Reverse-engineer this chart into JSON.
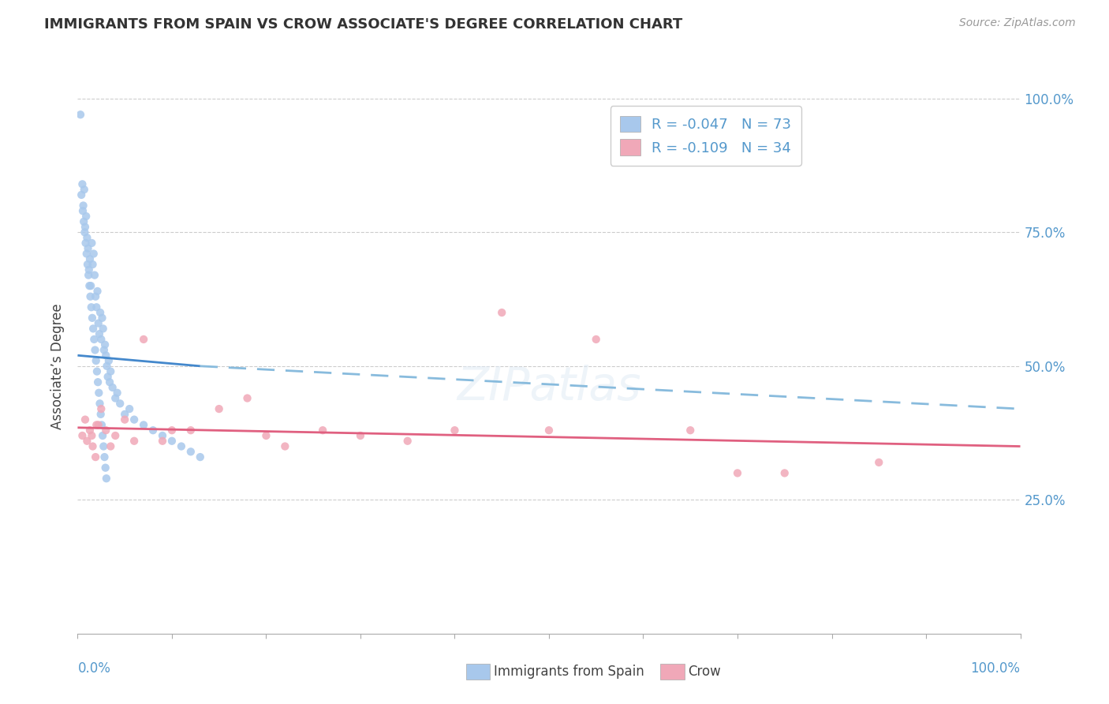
{
  "title": "IMMIGRANTS FROM SPAIN VS CROW ASSOCIATE'S DEGREE CORRELATION CHART",
  "source_text": "Source: ZipAtlas.com",
  "ylabel": "Associate’s Degree",
  "legend_label1": "Immigrants from Spain",
  "legend_label2": "Crow",
  "R1": -0.047,
  "N1": 73,
  "R2": -0.109,
  "N2": 34,
  "blue_color": "#A8C8EC",
  "blue_line_color": "#4488CC",
  "pink_color": "#F0A8B8",
  "pink_line_color": "#E06080",
  "dashed_line_color": "#88BBDD",
  "blue_scatter_x": [
    0.3,
    0.5,
    0.6,
    0.7,
    0.8,
    0.9,
    1.0,
    1.1,
    1.2,
    1.3,
    1.4,
    1.5,
    1.6,
    1.7,
    1.8,
    1.9,
    2.0,
    2.1,
    2.2,
    2.3,
    2.4,
    2.5,
    2.6,
    2.7,
    2.8,
    2.9,
    3.0,
    3.1,
    3.2,
    3.3,
    3.4,
    3.5,
    3.7,
    4.0,
    4.2,
    4.5,
    5.0,
    5.5,
    6.0,
    7.0,
    8.0,
    9.0,
    10.0,
    11.0,
    12.0,
    13.0,
    0.4,
    0.55,
    0.65,
    0.75,
    0.85,
    0.95,
    1.05,
    1.15,
    1.25,
    1.35,
    1.45,
    1.55,
    1.65,
    1.75,
    1.85,
    1.95,
    2.05,
    2.15,
    2.25,
    2.35,
    2.45,
    2.55,
    2.65,
    2.75,
    2.85,
    2.95,
    3.05
  ],
  "blue_scatter_y": [
    97.0,
    84.0,
    80.0,
    83.0,
    76.0,
    78.0,
    74.0,
    72.0,
    68.0,
    70.0,
    65.0,
    73.0,
    69.0,
    71.0,
    67.0,
    63.0,
    61.0,
    64.0,
    58.0,
    56.0,
    60.0,
    55.0,
    59.0,
    57.0,
    53.0,
    54.0,
    52.0,
    50.0,
    48.0,
    51.0,
    47.0,
    49.0,
    46.0,
    44.0,
    45.0,
    43.0,
    41.0,
    42.0,
    40.0,
    39.0,
    38.0,
    37.0,
    36.0,
    35.0,
    34.0,
    33.0,
    82.0,
    79.0,
    77.0,
    75.0,
    73.0,
    71.0,
    69.0,
    67.0,
    65.0,
    63.0,
    61.0,
    59.0,
    57.0,
    55.0,
    53.0,
    51.0,
    49.0,
    47.0,
    45.0,
    43.0,
    41.0,
    39.0,
    37.0,
    35.0,
    33.0,
    31.0,
    29.0
  ],
  "pink_scatter_x": [
    0.5,
    0.8,
    1.0,
    1.3,
    1.6,
    1.9,
    2.2,
    2.5,
    3.0,
    4.0,
    5.0,
    7.0,
    9.0,
    12.0,
    15.0,
    18.0,
    22.0,
    26.0,
    30.0,
    35.0,
    40.0,
    45.0,
    55.0,
    65.0,
    75.0,
    85.0,
    1.5,
    2.0,
    3.5,
    6.0,
    10.0,
    20.0,
    50.0,
    70.0
  ],
  "pink_scatter_y": [
    37.0,
    40.0,
    36.0,
    38.0,
    35.0,
    33.0,
    39.0,
    42.0,
    38.0,
    37.0,
    40.0,
    55.0,
    36.0,
    38.0,
    42.0,
    44.0,
    35.0,
    38.0,
    37.0,
    36.0,
    38.0,
    60.0,
    55.0,
    38.0,
    30.0,
    32.0,
    37.0,
    39.0,
    35.0,
    36.0,
    38.0,
    37.0,
    38.0,
    30.0
  ],
  "xlim": [
    0,
    100
  ],
  "ylim": [
    0,
    100
  ],
  "yticks": [
    25,
    50,
    75,
    100
  ],
  "yticklabels": [
    "25.0%",
    "50.0%",
    "75.0%",
    "100.0%"
  ],
  "blue_line_x": [
    0,
    13
  ],
  "blue_line_y": [
    52,
    50
  ],
  "dashed_line_x": [
    13,
    100
  ],
  "dashed_line_y": [
    50,
    42
  ],
  "pink_line_x": [
    0,
    100
  ],
  "pink_line_y": [
    38.5,
    35.0
  ]
}
